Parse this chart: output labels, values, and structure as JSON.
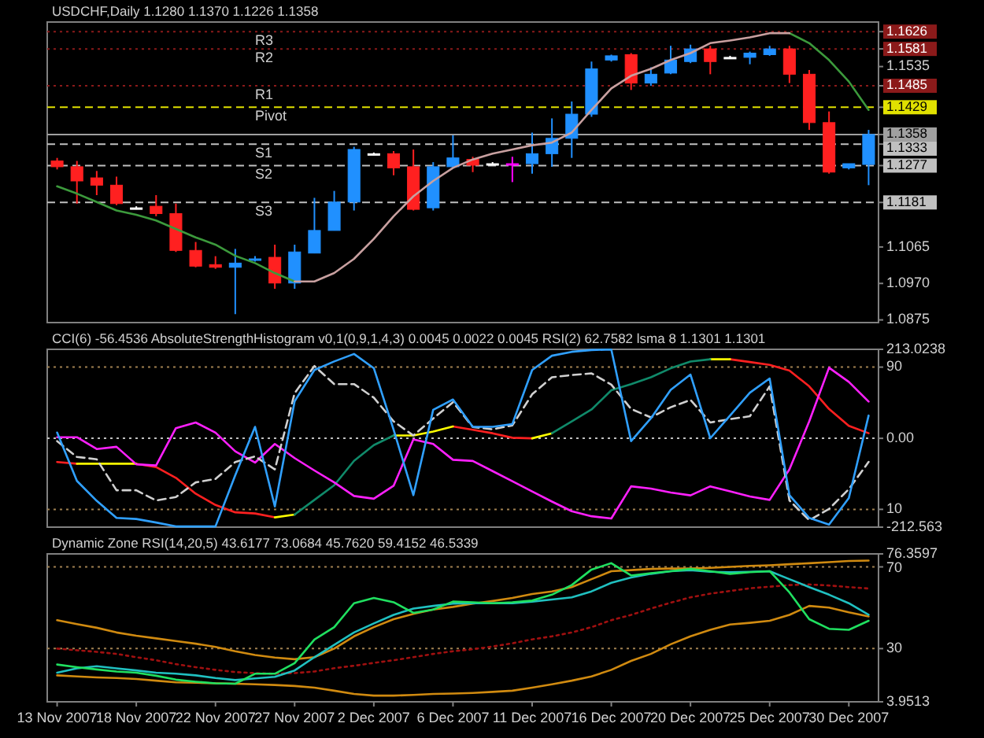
{
  "chart_data": [
    {
      "type": "candlestick",
      "title": "USDCHF,Daily 1.1280 1.1370 1.1226 1.1358",
      "categories": [
        null,
        null,
        null,
        null,
        null,
        null,
        null,
        null,
        null,
        null,
        null,
        null,
        null,
        null,
        null,
        null,
        null,
        null,
        null,
        null,
        null,
        null,
        null,
        null,
        null,
        null,
        null,
        null,
        null,
        null,
        null,
        null,
        null,
        null,
        null,
        null,
        null,
        null,
        null,
        null,
        null,
        null
      ],
      "series": [
        {
          "ohlc": [
            [
              1.1289,
              1.1297,
              1.1267,
              1.1274
            ],
            [
              1.1274,
              1.1289,
              1.1178,
              1.1237
            ],
            [
              1.1245,
              1.1263,
              1.12,
              1.1226
            ],
            [
              1.1226,
              1.1248,
              1.1174,
              1.1178
            ],
            [
              1.1167,
              1.1171,
              1.1163,
              1.1167
            ],
            [
              1.1171,
              1.12,
              1.1145,
              1.1152
            ],
            [
              1.1152,
              1.1178,
              1.1052,
              1.1056
            ],
            [
              1.1056,
              1.1078,
              1.1012,
              1.1015
            ],
            [
              1.1019,
              1.1041,
              1.1008,
              1.1012
            ],
            [
              1.1012,
              1.106,
              1.089,
              1.1023
            ],
            [
              1.103,
              1.1041,
              1.1027,
              1.1034
            ],
            [
              1.1038,
              1.1071,
              1.0956,
              1.0971
            ],
            [
              1.0971,
              1.1071,
              1.0956,
              1.1052
            ],
            [
              1.1049,
              1.1193,
              1.1049,
              1.1108
            ],
            [
              1.1108,
              1.1211,
              1.1108,
              1.1182
            ],
            [
              1.1182,
              1.1326,
              1.116,
              1.1319
            ],
            [
              1.1308,
              1.1311,
              1.1304,
              1.1308
            ],
            [
              1.1308,
              1.1315,
              1.1252,
              1.1271
            ],
            [
              1.1274,
              1.1319,
              1.116,
              1.1163
            ],
            [
              1.1167,
              1.1286,
              1.116,
              1.1274
            ],
            [
              1.1274,
              1.1356,
              1.1271,
              1.1297
            ],
            [
              1.1293,
              1.13,
              1.126,
              1.1278
            ],
            [
              1.1282,
              1.1286,
              1.1278,
              1.1282
            ],
            [
              1.1282,
              1.13,
              1.1234,
              1.1282
            ],
            [
              1.1282,
              1.1363,
              1.1256,
              1.1308
            ],
            [
              1.1308,
              1.14,
              1.1274,
              1.1348
            ],
            [
              1.1348,
              1.1444,
              1.1297,
              1.1411
            ],
            [
              1.1411,
              1.1548,
              1.1404,
              1.1529
            ],
            [
              1.1552,
              1.1566,
              1.1548,
              1.1563
            ],
            [
              1.1566,
              1.157,
              1.1474,
              1.1492
            ],
            [
              1.1492,
              1.1533,
              1.1485,
              1.1515
            ],
            [
              1.1518,
              1.1589,
              1.1515,
              1.1552
            ],
            [
              1.1548,
              1.1592,
              1.1544,
              1.1581
            ],
            [
              1.1581,
              1.1589,
              1.1515,
              1.1548
            ],
            [
              1.1559,
              1.1563,
              1.1555,
              1.1559
            ],
            [
              1.1559,
              1.1574,
              1.1541,
              1.157
            ],
            [
              1.1566,
              1.1589,
              1.1563,
              1.1581
            ],
            [
              1.1581,
              1.1589,
              1.1492,
              1.1515
            ],
            [
              1.1515,
              1.1526,
              1.137,
              1.1389
            ],
            [
              1.1389,
              1.1418,
              1.1256,
              1.126
            ],
            [
              1.1271,
              1.1282,
              1.1267,
              1.1282
            ],
            [
              1.128,
              1.137,
              1.1226,
              1.1358
            ]
          ],
          "colors": [
            "#ff2020",
            "#ff2020",
            "#ff2020",
            "#ff2020",
            "#ffffff",
            "#ff2020",
            "#ff2020",
            "#ff2020",
            "#ff2020",
            "#2090ff",
            "#2090ff",
            "#ff2020",
            "#2090ff",
            "#2090ff",
            "#2090ff",
            "#2090ff",
            "#ffffff",
            "#ff2020",
            "#ff2020",
            "#2090ff",
            "#2090ff",
            "#ff2020",
            "#ffffff",
            "#ff00ff",
            "#2090ff",
            "#2090ff",
            "#2090ff",
            "#2090ff",
            "#2090ff",
            "#ff2020",
            "#2090ff",
            "#2090ff",
            "#2090ff",
            "#ff2020",
            "#ffffff",
            "#2090ff",
            "#2090ff",
            "#ff2020",
            "#ff2020",
            "#ff2020",
            "#2090ff",
            "#2090ff"
          ]
        },
        {
          "type": "line",
          "color": "#3c9a3c",
          "values": [
            1.1223,
            1.1204,
            1.1182,
            1.116,
            1.1149,
            1.1134,
            1.1112,
            1.109,
            1.1071,
            1.1042,
            1.1023,
            1.0997,
            1.0975,
            null,
            null,
            null,
            null,
            null,
            null,
            null,
            null,
            null,
            null,
            null,
            null,
            null,
            null,
            null,
            null,
            null,
            null,
            null,
            null,
            null,
            null,
            null,
            null,
            1.1622,
            1.1596,
            1.1552,
            1.1496,
            1.1422
          ]
        },
        {
          "type": "line",
          "color": "#c8a0a0",
          "values": [
            null,
            null,
            null,
            null,
            null,
            null,
            null,
            null,
            null,
            null,
            null,
            null,
            1.0975,
            1.0975,
            1.0997,
            1.1034,
            1.1086,
            1.1145,
            1.1197,
            1.1237,
            1.1271,
            1.1293,
            1.1308,
            1.1319,
            1.133,
            1.1337,
            1.1363,
            1.1422,
            1.1478,
            1.1511,
            1.1529,
            1.1552,
            1.157,
            1.1596,
            1.1603,
            1.1611,
            1.1622,
            1.1622,
            null,
            null,
            null,
            null
          ]
        }
      ],
      "ylim": [
        1.0868,
        1.1651
      ],
      "yticks": [
        1.0875,
        {
          "value": 1.097,
          "label": "1.0970"
        },
        1.1065,
        1.1535,
        {
          "value": 1.1626,
          "label": "1.1626"
        },
        {
          "value": 1.1581,
          "label": "1.1581"
        },
        {
          "value": 1.1485,
          "label": "1.1485"
        },
        {
          "value": 1.1429,
          "label": "1.1429"
        },
        {
          "value": 1.1358,
          "label": "1.1358"
        },
        {
          "value": 1.1333,
          "label": "1.1333"
        },
        {
          "value": 1.1277,
          "label": "1.1277"
        },
        {
          "value": 1.1181,
          "label": "1.1181"
        }
      ],
      "ref_lines": [
        {
          "axis": "y",
          "value": 1.1626,
          "label": "R3",
          "color": "#8b1a1a",
          "line_style": "dotted"
        },
        {
          "axis": "y",
          "value": 1.1581,
          "label": "R2",
          "color": "#8b1a1a",
          "line_style": "dotted"
        },
        {
          "axis": "y",
          "value": 1.1485,
          "label": "R1",
          "color": "#8b1a1a",
          "line_style": "dotted"
        },
        {
          "axis": "y",
          "value": 1.1429,
          "label": "Pivot",
          "color": "#e0e000",
          "line_style": "dashed"
        },
        {
          "axis": "y",
          "value": 1.1358,
          "label": null,
          "color": "#a0a0a0",
          "line_style": "solid"
        },
        {
          "axis": "y",
          "value": 1.1333,
          "label": "S1",
          "color": "#c0c0c0",
          "line_style": "dashed"
        },
        {
          "axis": "y",
          "value": 1.1277,
          "label": "S2",
          "color": "#c0c0c0",
          "line_style": "dashed"
        },
        {
          "axis": "y",
          "value": 1.1181,
          "label": "S3",
          "color": "#c0c0c0",
          "line_style": "dashed"
        }
      ],
      "tick_labels": "y"
    },
    {
      "type": "line",
      "title": "CCI(6) -56.4536  AbsoluteStrengthHistogram v0,1(0,9,1,4,3) 0.0045 0.0022 0.0045  RSI(2) 62.7582  lsma 8 1.1301 1.1301",
      "categories": [
        null,
        null,
        null,
        null,
        null,
        null,
        null,
        null,
        null,
        null,
        null,
        null,
        null,
        null,
        null,
        null,
        null,
        null,
        null,
        null,
        null,
        null,
        null,
        null,
        null,
        null,
        null,
        null,
        null,
        null,
        null,
        null,
        null,
        null,
        null,
        null,
        null,
        null,
        null,
        null,
        null,
        null
      ],
      "series": [
        {
          "color": "#ff2020",
          "values": [
            -56.7,
            -60.8,
            null,
            null,
            -60.8,
            -68.9,
            -94.6,
            -132.5,
            -159.5,
            -177.1,
            -179.8,
            -189.2,
            null,
            null,
            null,
            null,
            null,
            null,
            null,
            null,
            28.4,
            20.3,
            12.2,
            1.4,
            0.0,
            null,
            null,
            null,
            null,
            null,
            null,
            null,
            null,
            null,
            189.3,
            182.6,
            175.8,
            162.3,
            124.4,
            70.3,
            29.8,
            12.2
          ]
        },
        {
          "color": "#ffff00",
          "values": [
            null,
            -60.8,
            -60.8,
            -60.8,
            -60.8,
            null,
            null,
            null,
            null,
            null,
            null,
            -189.2,
            -182.5,
            null,
            null,
            null,
            null,
            6.8,
            6.8,
            16.3,
            28.4,
            null,
            null,
            null,
            0.0,
            12.2,
            null,
            null,
            null,
            null,
            null,
            null,
            null,
            189.3,
            189.3,
            null,
            null,
            null,
            null,
            null,
            null,
            null
          ]
        },
        {
          "color": "#108a6a",
          "values": [
            null,
            null,
            null,
            null,
            null,
            null,
            null,
            null,
            null,
            null,
            null,
            null,
            -182.5,
            -147.3,
            -112.2,
            -54.0,
            -16.2,
            6.8,
            null,
            null,
            null,
            null,
            null,
            null,
            null,
            12.2,
            40.6,
            69.0,
            115.0,
            129.8,
            146.1,
            167.7,
            183.9,
            189.3,
            null,
            null,
            null,
            null,
            null,
            null,
            null,
            null
          ]
        },
        {
          "color": "#ff20ff",
          "values": [
            2.7,
            2.7,
            -25.6,
            -20.2,
            -62.1,
            -64.9,
            24.4,
            37.9,
            13.6,
            -31.1,
            -58.1,
            -13.5,
            -47.3,
            -77.0,
            -105.4,
            -137.9,
            -144.6,
            -113.5,
            -2.7,
            -13.5,
            -51.3,
            -54.1,
            -78.4,
            -102.7,
            -127.0,
            -151.4,
            -174.4,
            -186.5,
            -191.9,
            -114.9,
            -120.3,
            -129.8,
            -136.5,
            -114.9,
            -127.0,
            -139.2,
            -147.3,
            -74.3,
            40.6,
            169.0,
            135.2,
            87.9
          ]
        },
        {
          "color": "#d0d0d0",
          "line_style": "dashed",
          "values": [
            -6.7,
            -44.6,
            -50.0,
            -124.3,
            -124.3,
            -148.7,
            -140.6,
            -105.4,
            -97.3,
            -56.7,
            -43.2,
            -74.3,
            108.2,
            173.1,
            129.8,
            129.8,
            97.4,
            40.6,
            6.8,
            47.4,
            86.6,
            27.1,
            21.7,
            31.1,
            105.5,
            146.1,
            151.5,
            155.5,
            128.5,
            70.3,
            50.1,
            74.4,
            92.0,
            37.9,
            46.0,
            52.8,
            124.4,
            -148.7,
            -196.0,
            -169.0,
            -121.6,
            -56.4536
          ]
        },
        {
          "color": "#30a0ff",
          "axis": "y2",
          "values": [
            53.2,
            26.0,
            14.8,
            5.2,
            4.6,
            2.6,
            0.4,
            0.4,
            0.4,
            29.2,
            56.4,
            11.6,
            70.8,
            88.4,
            93.2,
            97.4,
            89.4,
            54.8,
            18.0,
            66.0,
            71.8,
            56.4,
            56.4,
            58.0,
            88.4,
            96.4,
            98.6,
            99.6,
            99.9,
            48.4,
            61.2,
            77.2,
            85.8,
            50.0,
            62.8,
            75.6,
            83.6,
            18.0,
            5.2,
            1.4,
            16.4,
            62.7582
          ]
        }
      ],
      "ylim": [
        -212.563,
        213.0238
      ],
      "yticks": [
        -212.563,
        {
          "value": 0,
          "label": "0.00"
        },
        213.0238
      ],
      "y2lim": [
        0,
        100
      ],
      "y2ticks": [
        10,
        90
      ],
      "ref_lines": [
        {
          "axis": "y",
          "value": 0,
          "label": null,
          "color": "#c0c0c0",
          "line_style": "dotted"
        },
        {
          "axis": "y2",
          "value": 90,
          "label": null,
          "color": "#a08050",
          "line_style": "dotted"
        },
        {
          "axis": "y2",
          "value": 10,
          "label": null,
          "color": "#a08050",
          "line_style": "dotted"
        }
      ],
      "tick_labels": "y"
    },
    {
      "type": "line",
      "title": "Dynamic Zone RSI(14,20,5) 43.6177 73.0684 45.7620 59.4152 46.5339",
      "categories": [
        "13 Nov 2007",
        null,
        null,
        null,
        "18 Nov 2007",
        null,
        null,
        null,
        "22 Nov 2007",
        null,
        null,
        null,
        "27 Nov 2007",
        null,
        null,
        null,
        "2 Dec 2007",
        null,
        null,
        null,
        "6 Dec 2007",
        null,
        null,
        null,
        "11 Dec 2007",
        null,
        null,
        null,
        "16 Dec 2007",
        null,
        null,
        null,
        "20 Dec 2007",
        null,
        null,
        null,
        "25 Dec 2007",
        null,
        null,
        null,
        "30 Dec 2007",
        null
      ],
      "series": [
        {
          "color": "#d08a10",
          "values": [
            43.9,
            42.0,
            40.2,
            37.9,
            36.3,
            35.0,
            33.7,
            32.4,
            30.8,
            28.7,
            26.9,
            25.6,
            24.8,
            25.8,
            30.0,
            36.0,
            40.5,
            44.4,
            47.0,
            49.1,
            50.4,
            52.0,
            53.3,
            54.8,
            56.7,
            58.0,
            60.1,
            64.0,
            67.9,
            68.4,
            69.0,
            69.2,
            69.2,
            69.5,
            70.0,
            70.5,
            70.8,
            71.3,
            71.8,
            72.3,
            72.9,
            73.0684
          ]
        },
        {
          "color": "#d08a10",
          "values": [
            16.9,
            16.4,
            15.9,
            15.6,
            15.1,
            14.3,
            13.5,
            13.3,
            13.0,
            12.8,
            12.5,
            12.2,
            11.7,
            10.9,
            9.4,
            7.8,
            7.0,
            7.0,
            7.3,
            7.8,
            8.0,
            8.3,
            8.8,
            9.4,
            10.9,
            12.5,
            14.3,
            16.4,
            19.6,
            24.0,
            27.4,
            32.1,
            36.0,
            39.2,
            41.8,
            42.6,
            43.6,
            46.5,
            50.9,
            50.1,
            47.8,
            45.762
          ]
        },
        {
          "color": "#a01010",
          "line_style": "dotted",
          "values": [
            30.0,
            29.2,
            28.4,
            27.4,
            25.8,
            24.3,
            22.4,
            20.9,
            19.6,
            18.5,
            18.0,
            17.7,
            18.0,
            18.8,
            20.4,
            21.6,
            23.0,
            24.3,
            25.8,
            27.4,
            28.7,
            29.7,
            31.0,
            32.6,
            34.5,
            36.0,
            37.9,
            40.5,
            43.9,
            46.5,
            49.6,
            52.5,
            55.1,
            56.9,
            58.2,
            59.5,
            60.3,
            61.1,
            61.4,
            60.9,
            60.1,
            59.4152
          ]
        },
        {
          "color": "#20c0c0",
          "values": [
            18.2,
            20.3,
            21.4,
            20.3,
            19.3,
            18.2,
            17.7,
            16.9,
            15.6,
            14.6,
            15.4,
            16.2,
            19.3,
            25.8,
            31.8,
            37.9,
            42.3,
            46.5,
            49.6,
            50.9,
            52.0,
            52.2,
            52.2,
            52.2,
            53.0,
            54.0,
            55.1,
            58.0,
            62.2,
            64.8,
            66.6,
            67.9,
            68.4,
            67.6,
            67.4,
            67.6,
            67.9,
            64.0,
            60.1,
            56.4,
            52.2,
            46.5339
          ]
        },
        {
          "color": "#20e060",
          "values": [
            22.2,
            20.9,
            19.8,
            18.8,
            18.2,
            16.7,
            14.8,
            13.8,
            13.0,
            12.8,
            17.7,
            17.7,
            22.9,
            34.4,
            40.5,
            52.2,
            54.8,
            52.7,
            47.5,
            49.1,
            53.0,
            52.7,
            52.2,
            52.7,
            53.5,
            56.4,
            61.1,
            68.7,
            71.8,
            65.8,
            66.9,
            67.9,
            69.0,
            67.9,
            66.6,
            67.4,
            67.9,
            57.5,
            44.4,
            39.7,
            39.2,
            43.6177
          ]
        }
      ],
      "ylim": [
        3.9513,
        76.3597
      ],
      "yticks": [
        3.9513,
        30,
        70,
        76.3597
      ],
      "ref_lines": [
        {
          "axis": "y",
          "value": 70,
          "label": null,
          "color": "#a08050",
          "line_style": "dotted"
        },
        {
          "axis": "y",
          "value": 30,
          "label": null,
          "color": "#a08050",
          "line_style": "dotted"
        }
      ]
    }
  ]
}
